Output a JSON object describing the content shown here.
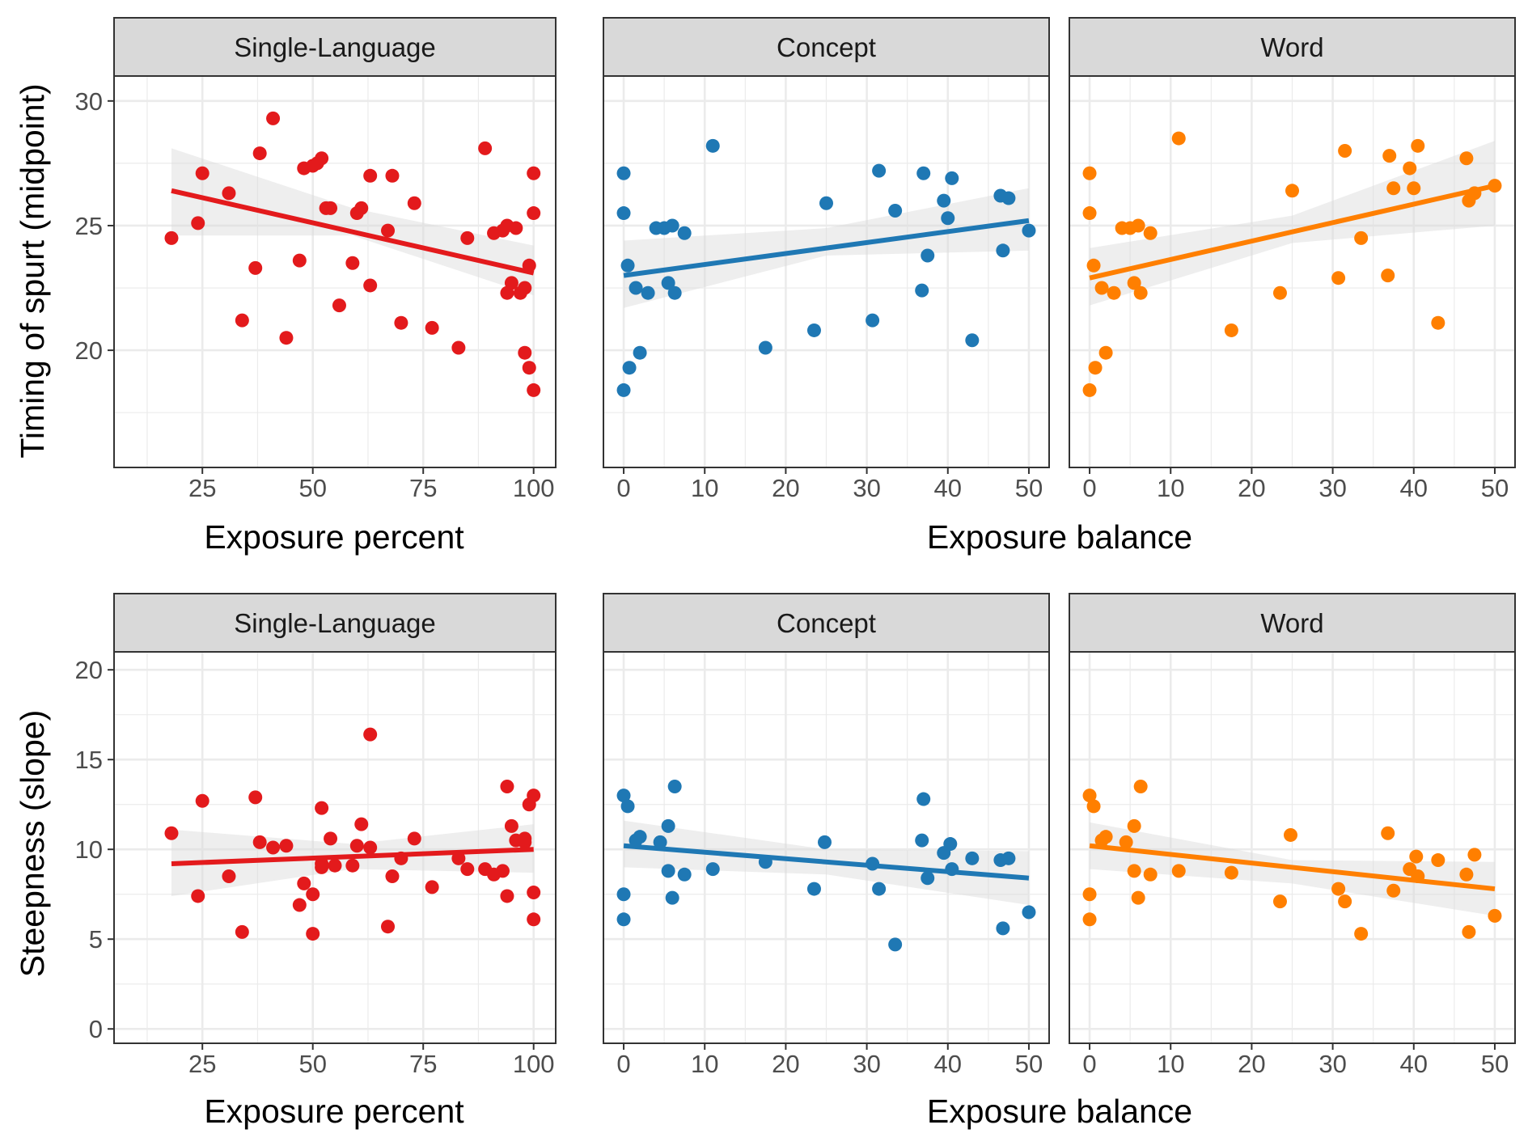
{
  "colors": {
    "single_language": "#e31a1c",
    "concept": "#1f78b4",
    "word": "#ff7f00",
    "strip_fill": "#d9d9d9",
    "panel_border": "#333333",
    "grid": "#ebebeb",
    "ribbon": "#d9d9d9"
  },
  "chart_data": [
    {
      "type": "scatter",
      "row": "timing",
      "panel": "Single-Language",
      "strip_label": "Single-Language",
      "xlabel": "Exposure percent",
      "ylabel": "Timing of spurt (midpoint)",
      "xlim": [
        5,
        105
      ],
      "ylim": [
        15.3,
        31.0
      ],
      "x_ticks": [
        25,
        50,
        75,
        100
      ],
      "y_ticks": [
        20,
        25,
        30
      ],
      "grid": true,
      "color": "single_language",
      "points": [
        [
          18,
          24.5
        ],
        [
          24,
          25.1
        ],
        [
          25,
          27.1
        ],
        [
          31,
          26.3
        ],
        [
          34,
          21.2
        ],
        [
          37,
          23.3
        ],
        [
          38,
          27.9
        ],
        [
          41,
          29.3
        ],
        [
          44,
          20.5
        ],
        [
          47,
          23.6
        ],
        [
          48,
          27.3
        ],
        [
          50,
          27.4
        ],
        [
          51,
          27.5
        ],
        [
          52,
          27.7
        ],
        [
          53,
          25.7
        ],
        [
          54,
          25.7
        ],
        [
          56,
          21.8
        ],
        [
          59,
          23.5
        ],
        [
          60,
          25.5
        ],
        [
          61,
          25.7
        ],
        [
          63,
          22.6
        ],
        [
          63,
          27.0
        ],
        [
          67,
          24.8
        ],
        [
          68,
          27.0
        ],
        [
          70,
          21.1
        ],
        [
          73,
          25.9
        ],
        [
          77,
          20.9
        ],
        [
          83,
          20.1
        ],
        [
          85,
          24.5
        ],
        [
          89,
          28.1
        ],
        [
          91,
          24.7
        ],
        [
          93,
          24.8
        ],
        [
          94,
          22.3
        ],
        [
          94,
          25.0
        ],
        [
          95,
          22.7
        ],
        [
          96,
          24.9
        ],
        [
          97,
          22.3
        ],
        [
          98,
          22.5
        ],
        [
          98,
          19.9
        ],
        [
          99,
          23.4
        ],
        [
          99,
          19.3
        ],
        [
          100,
          27.1
        ],
        [
          100,
          25.5
        ],
        [
          100,
          18.4
        ]
      ],
      "fit_line": [
        [
          18,
          26.4
        ],
        [
          100,
          23.1
        ]
      ],
      "ribbon": {
        "x": [
          18,
          59,
          100
        ],
        "lower": [
          24.6,
          24.6,
          22.2
        ],
        "upper": [
          28.1,
          25.7,
          24.2
        ]
      }
    },
    {
      "type": "scatter",
      "row": "timing",
      "panel": "Concept",
      "strip_label": "Concept",
      "xlabel": "Exposure balance",
      "ylabel": "Timing of spurt (midpoint)",
      "xlim": [
        -2.5,
        52.5
      ],
      "ylim": [
        15.3,
        31.0
      ],
      "x_ticks": [
        0,
        10,
        20,
        30,
        40,
        50
      ],
      "y_ticks": [
        20,
        25,
        30
      ],
      "grid": true,
      "color": "concept",
      "points": [
        [
          0,
          27.1
        ],
        [
          0,
          25.5
        ],
        [
          0,
          18.4
        ],
        [
          0.5,
          23.4
        ],
        [
          0.7,
          19.3
        ],
        [
          1.5,
          22.5
        ],
        [
          2,
          19.9
        ],
        [
          3,
          22.3
        ],
        [
          4,
          24.9
        ],
        [
          5,
          24.9
        ],
        [
          5.5,
          22.7
        ],
        [
          6,
          25.0
        ],
        [
          6.3,
          22.3
        ],
        [
          7.5,
          24.7
        ],
        [
          11,
          28.2
        ],
        [
          17.5,
          20.1
        ],
        [
          23.5,
          20.8
        ],
        [
          25,
          25.9
        ],
        [
          30.7,
          21.2
        ],
        [
          31.5,
          27.2
        ],
        [
          33.5,
          25.6
        ],
        [
          36.8,
          22.4
        ],
        [
          37,
          27.1
        ],
        [
          37.5,
          23.8
        ],
        [
          39.5,
          26.0
        ],
        [
          40,
          25.3
        ],
        [
          40.5,
          26.9
        ],
        [
          43,
          20.4
        ],
        [
          46.5,
          26.2
        ],
        [
          46.8,
          24.0
        ],
        [
          47.5,
          26.1
        ],
        [
          50,
          24.8
        ]
      ],
      "fit_line": [
        [
          0,
          23.0
        ],
        [
          50,
          25.2
        ]
      ],
      "ribbon": {
        "x": [
          0,
          25,
          50
        ],
        "lower": [
          21.7,
          23.8,
          24.0
        ],
        "upper": [
          24.4,
          24.9,
          26.5
        ]
      }
    },
    {
      "type": "scatter",
      "row": "timing",
      "panel": "Word",
      "strip_label": "Word",
      "xlabel": "Exposure balance",
      "ylabel": "Timing of spurt (midpoint)",
      "xlim": [
        -2.5,
        52.5
      ],
      "ylim": [
        15.3,
        31.0
      ],
      "x_ticks": [
        0,
        10,
        20,
        30,
        40,
        50
      ],
      "y_ticks": [
        20,
        25,
        30
      ],
      "grid": true,
      "color": "word",
      "points": [
        [
          0,
          27.1
        ],
        [
          0,
          25.5
        ],
        [
          0,
          18.4
        ],
        [
          0.5,
          23.4
        ],
        [
          0.7,
          19.3
        ],
        [
          1.5,
          22.5
        ],
        [
          2,
          19.9
        ],
        [
          3,
          22.3
        ],
        [
          4,
          24.9
        ],
        [
          5,
          24.9
        ],
        [
          5.5,
          22.7
        ],
        [
          6,
          25.0
        ],
        [
          6.3,
          22.3
        ],
        [
          7.5,
          24.7
        ],
        [
          11,
          28.5
        ],
        [
          17.5,
          20.8
        ],
        [
          23.5,
          22.3
        ],
        [
          25,
          26.4
        ],
        [
          30.7,
          22.9
        ],
        [
          31.5,
          28.0
        ],
        [
          33.5,
          24.5
        ],
        [
          36.8,
          23.0
        ],
        [
          37,
          27.8
        ],
        [
          37.5,
          26.5
        ],
        [
          39.5,
          27.3
        ],
        [
          40,
          26.5
        ],
        [
          40.5,
          28.2
        ],
        [
          43,
          21.1
        ],
        [
          46.5,
          27.7
        ],
        [
          46.8,
          26.0
        ],
        [
          47.5,
          26.3
        ],
        [
          50,
          26.6
        ]
      ],
      "fit_line": [
        [
          0,
          22.9
        ],
        [
          50,
          26.6
        ]
      ],
      "ribbon": {
        "x": [
          0,
          25,
          50
        ],
        "lower": [
          21.8,
          24.3,
          25.0
        ],
        "upper": [
          24.1,
          25.4,
          28.4
        ]
      }
    },
    {
      "type": "scatter",
      "row": "steepness",
      "panel": "Single-Language",
      "strip_label": "Single-Language",
      "xlabel": "Exposure percent",
      "ylabel": "Steepness (slope)",
      "xlim": [
        5,
        105
      ],
      "ylim": [
        -0.8,
        21.0
      ],
      "x_ticks": [
        25,
        50,
        75,
        100
      ],
      "y_ticks": [
        0,
        5,
        10,
        15,
        20
      ],
      "grid": true,
      "color": "single_language",
      "points": [
        [
          18,
          10.9
        ],
        [
          24,
          7.4
        ],
        [
          25,
          12.7
        ],
        [
          31,
          8.5
        ],
        [
          34,
          5.4
        ],
        [
          37,
          12.9
        ],
        [
          38,
          10.4
        ],
        [
          41,
          10.1
        ],
        [
          44,
          10.2
        ],
        [
          47,
          6.9
        ],
        [
          48,
          8.1
        ],
        [
          50,
          5.3
        ],
        [
          50,
          7.5
        ],
        [
          52,
          9.2
        ],
        [
          52,
          9.0
        ],
        [
          52,
          12.3
        ],
        [
          54,
          10.6
        ],
        [
          55,
          9.1
        ],
        [
          59,
          9.1
        ],
        [
          60,
          10.2
        ],
        [
          61,
          11.4
        ],
        [
          63,
          10.1
        ],
        [
          63,
          16.4
        ],
        [
          67,
          5.7
        ],
        [
          68,
          8.5
        ],
        [
          70,
          9.5
        ],
        [
          73,
          10.6
        ],
        [
          77,
          7.9
        ],
        [
          83,
          9.5
        ],
        [
          85,
          8.9
        ],
        [
          89,
          8.9
        ],
        [
          91,
          8.6
        ],
        [
          93,
          8.8
        ],
        [
          94,
          7.4
        ],
        [
          94,
          13.5
        ],
        [
          95,
          11.3
        ],
        [
          96,
          10.5
        ],
        [
          98,
          10.6
        ],
        [
          98,
          10.4
        ],
        [
          99,
          12.5
        ],
        [
          100,
          13.0
        ],
        [
          100,
          7.6
        ],
        [
          100,
          6.1
        ]
      ],
      "fit_line": [
        [
          18,
          9.2
        ],
        [
          100,
          10.0
        ]
      ],
      "ribbon": {
        "x": [
          18,
          59,
          100
        ],
        "lower": [
          7.4,
          8.9,
          8.7
        ],
        "upper": [
          11.1,
          10.3,
          11.4
        ]
      }
    },
    {
      "type": "scatter",
      "row": "steepness",
      "panel": "Concept",
      "strip_label": "Concept",
      "xlabel": "Exposure balance",
      "ylabel": "Steepness (slope)",
      "xlim": [
        -2.5,
        52.5
      ],
      "ylim": [
        -0.8,
        21.0
      ],
      "x_ticks": [
        0,
        10,
        20,
        30,
        40,
        50
      ],
      "y_ticks": [
        0,
        5,
        10,
        15,
        20
      ],
      "grid": true,
      "color": "concept",
      "points": [
        [
          0,
          13.0
        ],
        [
          0,
          7.5
        ],
        [
          0,
          6.1
        ],
        [
          0.5,
          12.4
        ],
        [
          1.5,
          10.5
        ],
        [
          2,
          10.7
        ],
        [
          4.5,
          10.4
        ],
        [
          5.5,
          11.3
        ],
        [
          5.5,
          8.8
        ],
        [
          6,
          7.3
        ],
        [
          6.3,
          13.5
        ],
        [
          7.5,
          8.6
        ],
        [
          11,
          8.9
        ],
        [
          17.5,
          9.3
        ],
        [
          23.5,
          7.8
        ],
        [
          24.8,
          10.4
        ],
        [
          30.7,
          9.2
        ],
        [
          31.5,
          7.8
        ],
        [
          33.5,
          4.7
        ],
        [
          36.8,
          10.5
        ],
        [
          37,
          12.8
        ],
        [
          37.5,
          8.4
        ],
        [
          39.5,
          9.8
        ],
        [
          40.3,
          10.3
        ],
        [
          40.5,
          8.9
        ],
        [
          43,
          9.5
        ],
        [
          46.5,
          9.4
        ],
        [
          46.8,
          5.6
        ],
        [
          47.5,
          9.5
        ],
        [
          50,
          6.5
        ]
      ],
      "fit_line": [
        [
          0,
          10.2
        ],
        [
          50,
          8.4
        ]
      ],
      "ribbon": {
        "x": [
          0,
          25,
          50
        ],
        "lower": [
          9.0,
          8.6,
          6.9
        ],
        "upper": [
          11.6,
          10.0,
          9.9
        ]
      }
    },
    {
      "type": "scatter",
      "row": "steepness",
      "panel": "Word",
      "strip_label": "Word",
      "xlabel": "Exposure balance",
      "ylabel": "Steepness (slope)",
      "xlim": [
        -2.5,
        52.5
      ],
      "ylim": [
        -0.8,
        21.0
      ],
      "x_ticks": [
        0,
        10,
        20,
        30,
        40,
        50
      ],
      "y_ticks": [
        0,
        5,
        10,
        15,
        20
      ],
      "grid": true,
      "color": "word",
      "points": [
        [
          0,
          13.0
        ],
        [
          0,
          7.5
        ],
        [
          0,
          6.1
        ],
        [
          0.5,
          12.4
        ],
        [
          1.5,
          10.5
        ],
        [
          2,
          10.7
        ],
        [
          4.5,
          10.4
        ],
        [
          5.5,
          11.3
        ],
        [
          5.5,
          8.8
        ],
        [
          6,
          7.3
        ],
        [
          6.3,
          13.5
        ],
        [
          7.5,
          8.6
        ],
        [
          11,
          8.8
        ],
        [
          17.5,
          8.7
        ],
        [
          23.5,
          7.1
        ],
        [
          24.8,
          10.8
        ],
        [
          30.7,
          7.8
        ],
        [
          31.5,
          7.1
        ],
        [
          33.5,
          5.3
        ],
        [
          36.8,
          10.9
        ],
        [
          37.5,
          7.7
        ],
        [
          39.5,
          8.9
        ],
        [
          40.3,
          9.6
        ],
        [
          40.5,
          8.5
        ],
        [
          43,
          9.4
        ],
        [
          46.5,
          8.6
        ],
        [
          46.8,
          5.4
        ],
        [
          47.5,
          9.7
        ],
        [
          50,
          6.3
        ]
      ],
      "fit_line": [
        [
          0,
          10.2
        ],
        [
          50,
          7.8
        ]
      ],
      "ribbon": {
        "x": [
          0,
          25,
          50
        ],
        "lower": [
          8.9,
          8.1,
          6.3
        ],
        "upper": [
          11.5,
          9.4,
          9.3
        ]
      }
    }
  ]
}
